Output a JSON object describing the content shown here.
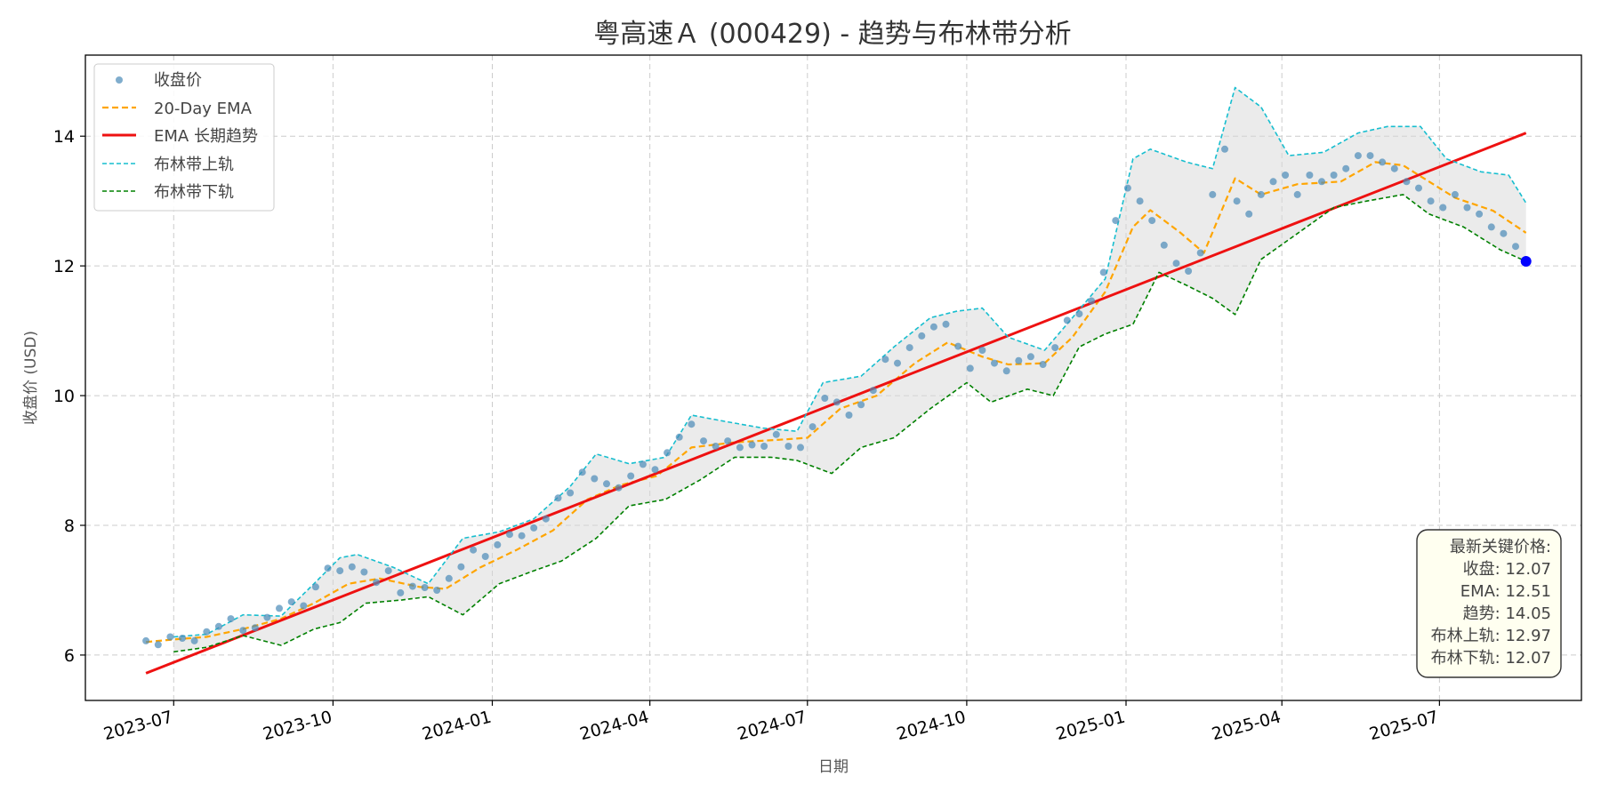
{
  "chart_data": {
    "type": "line",
    "title": "粤高速Ａ (000429) - 趋势与布林带分析",
    "xlabel": "日期",
    "ylabel": "收盘价 (USD)",
    "x_ticks": [
      "2023-07",
      "2023-10",
      "2024-01",
      "2024-04",
      "2024-07",
      "2024-10",
      "2025-01",
      "2025-04",
      "2025-07"
    ],
    "y_ticks": [
      6,
      8,
      10,
      12,
      14
    ],
    "xlim": [
      "2023-05-11",
      "2025-09-21"
    ],
    "ylim": [
      5.3,
      15.25
    ],
    "grid": true,
    "legend_position": "top-left",
    "legend": [
      "收盘价",
      "20-Day EMA",
      "EMA 长期趋势",
      "布林带上轨",
      "布林带下轨"
    ],
    "colors": {
      "close": "#4a8ab8",
      "ema": "#ffa500",
      "trend": "#ee1111",
      "upper": "#17becf",
      "lower": "#008000",
      "band_fill": "#d8d8d8",
      "latest_point": "#0000ff"
    },
    "series": [
      {
        "name": "收盘价",
        "style": "scatter",
        "points": [
          [
            "2023-06-15",
            6.22
          ],
          [
            "2023-06-22",
            6.16
          ],
          [
            "2023-06-29",
            6.28
          ],
          [
            "2023-07-06",
            6.26
          ],
          [
            "2023-07-13",
            6.22
          ],
          [
            "2023-07-20",
            6.36
          ],
          [
            "2023-07-27",
            6.44
          ],
          [
            "2023-08-03",
            6.56
          ],
          [
            "2023-08-10",
            6.38
          ],
          [
            "2023-08-17",
            6.42
          ],
          [
            "2023-08-24",
            6.58
          ],
          [
            "2023-08-31",
            6.72
          ],
          [
            "2023-09-07",
            6.82
          ],
          [
            "2023-09-14",
            6.76
          ],
          [
            "2023-09-21",
            7.05
          ],
          [
            "2023-09-28",
            7.34
          ],
          [
            "2023-10-05",
            7.3
          ],
          [
            "2023-10-12",
            7.36
          ],
          [
            "2023-10-19",
            7.28
          ],
          [
            "2023-10-26",
            7.12
          ],
          [
            "2023-11-02",
            7.3
          ],
          [
            "2023-11-09",
            6.96
          ],
          [
            "2023-11-16",
            7.06
          ],
          [
            "2023-11-23",
            7.04
          ],
          [
            "2023-11-30",
            7.0
          ],
          [
            "2023-12-07",
            7.18
          ],
          [
            "2023-12-14",
            7.36
          ],
          [
            "2023-12-21",
            7.62
          ],
          [
            "2023-12-28",
            7.52
          ],
          [
            "2024-01-04",
            7.7
          ],
          [
            "2024-01-11",
            7.86
          ],
          [
            "2024-01-18",
            7.84
          ],
          [
            "2024-01-25",
            7.96
          ],
          [
            "2024-02-01",
            8.1
          ],
          [
            "2024-02-08",
            8.42
          ],
          [
            "2024-02-15",
            8.5
          ],
          [
            "2024-02-22",
            8.82
          ],
          [
            "2024-02-29",
            8.72
          ],
          [
            "2024-03-07",
            8.64
          ],
          [
            "2024-03-14",
            8.58
          ],
          [
            "2024-03-21",
            8.76
          ],
          [
            "2024-03-28",
            8.94
          ],
          [
            "2024-04-04",
            8.86
          ],
          [
            "2024-04-11",
            9.12
          ],
          [
            "2024-04-18",
            9.36
          ],
          [
            "2024-04-25",
            9.56
          ],
          [
            "2024-05-02",
            9.3
          ],
          [
            "2024-05-09",
            9.22
          ],
          [
            "2024-05-16",
            9.3
          ],
          [
            "2024-05-23",
            9.2
          ],
          [
            "2024-05-30",
            9.24
          ],
          [
            "2024-06-06",
            9.22
          ],
          [
            "2024-06-13",
            9.4
          ],
          [
            "2024-06-20",
            9.22
          ],
          [
            "2024-06-27",
            9.2
          ],
          [
            "2024-07-04",
            9.52
          ],
          [
            "2024-07-11",
            9.96
          ],
          [
            "2024-07-18",
            9.9
          ],
          [
            "2024-07-25",
            9.7
          ],
          [
            "2024-08-01",
            9.86
          ],
          [
            "2024-08-08",
            10.08
          ],
          [
            "2024-08-15",
            10.56
          ],
          [
            "2024-08-22",
            10.5
          ],
          [
            "2024-08-29",
            10.74
          ],
          [
            "2024-09-05",
            10.92
          ],
          [
            "2024-09-12",
            11.06
          ],
          [
            "2024-09-19",
            11.1
          ],
          [
            "2024-09-26",
            10.76
          ],
          [
            "2024-10-03",
            10.42
          ],
          [
            "2024-10-10",
            10.7
          ],
          [
            "2024-10-17",
            10.5
          ],
          [
            "2024-10-24",
            10.38
          ],
          [
            "2024-10-31",
            10.54
          ],
          [
            "2024-11-07",
            10.6
          ],
          [
            "2024-11-14",
            10.48
          ],
          [
            "2024-11-21",
            10.74
          ],
          [
            "2024-11-28",
            11.16
          ],
          [
            "2024-12-05",
            11.26
          ],
          [
            "2024-12-12",
            11.46
          ],
          [
            "2024-12-19",
            11.9
          ],
          [
            "2024-12-26",
            12.7
          ],
          [
            "2025-01-02",
            13.2
          ],
          [
            "2025-01-09",
            13.0
          ],
          [
            "2025-01-16",
            12.7
          ],
          [
            "2025-01-23",
            12.32
          ],
          [
            "2025-01-30",
            12.04
          ],
          [
            "2025-02-06",
            11.92
          ],
          [
            "2025-02-13",
            12.2
          ],
          [
            "2025-02-20",
            13.1
          ],
          [
            "2025-02-27",
            13.8
          ],
          [
            "2025-03-06",
            13.0
          ],
          [
            "2025-03-13",
            12.8
          ],
          [
            "2025-03-20",
            13.1
          ],
          [
            "2025-03-27",
            13.3
          ],
          [
            "2025-04-03",
            13.4
          ],
          [
            "2025-04-10",
            13.1
          ],
          [
            "2025-04-17",
            13.4
          ],
          [
            "2025-04-24",
            13.3
          ],
          [
            "2025-05-01",
            13.4
          ],
          [
            "2025-05-08",
            13.5
          ],
          [
            "2025-05-15",
            13.7
          ],
          [
            "2025-05-22",
            13.7
          ],
          [
            "2025-05-29",
            13.6
          ],
          [
            "2025-06-05",
            13.5
          ],
          [
            "2025-06-12",
            13.3
          ],
          [
            "2025-06-19",
            13.2
          ],
          [
            "2025-06-26",
            13.0
          ],
          [
            "2025-07-03",
            12.9
          ],
          [
            "2025-07-10",
            13.1
          ],
          [
            "2025-07-17",
            12.9
          ],
          [
            "2025-07-24",
            12.8
          ],
          [
            "2025-07-31",
            12.6
          ],
          [
            "2025-08-07",
            12.5
          ],
          [
            "2025-08-14",
            12.3
          ],
          [
            "2025-08-20",
            12.07
          ]
        ]
      },
      {
        "name": "20-Day EMA",
        "style": "dashed",
        "points": [
          [
            "2023-06-15",
            6.2
          ],
          [
            "2023-07-01",
            6.24
          ],
          [
            "2023-07-20",
            6.28
          ],
          [
            "2023-08-10",
            6.4
          ],
          [
            "2023-09-01",
            6.56
          ],
          [
            "2023-09-20",
            6.8
          ],
          [
            "2023-10-10",
            7.1
          ],
          [
            "2023-10-28",
            7.18
          ],
          [
            "2023-11-20",
            7.05
          ],
          [
            "2023-12-05",
            7.02
          ],
          [
            "2023-12-25",
            7.35
          ],
          [
            "2024-01-15",
            7.62
          ],
          [
            "2024-02-05",
            7.92
          ],
          [
            "2024-02-25",
            8.4
          ],
          [
            "2024-03-15",
            8.62
          ],
          [
            "2024-04-05",
            8.76
          ],
          [
            "2024-04-25",
            9.2
          ],
          [
            "2024-05-20",
            9.28
          ],
          [
            "2024-06-15",
            9.32
          ],
          [
            "2024-07-01",
            9.35
          ],
          [
            "2024-07-20",
            9.8
          ],
          [
            "2024-08-10",
            10.0
          ],
          [
            "2024-09-01",
            10.5
          ],
          [
            "2024-09-20",
            10.82
          ],
          [
            "2024-10-10",
            10.6
          ],
          [
            "2024-10-25",
            10.48
          ],
          [
            "2024-11-15",
            10.5
          ],
          [
            "2024-12-01",
            10.9
          ],
          [
            "2024-12-20",
            11.6
          ],
          [
            "2025-01-05",
            12.6
          ],
          [
            "2025-01-15",
            12.86
          ],
          [
            "2025-02-01",
            12.52
          ],
          [
            "2025-02-15",
            12.2
          ],
          [
            "2025-03-05",
            13.35
          ],
          [
            "2025-03-20",
            13.1
          ],
          [
            "2025-04-10",
            13.26
          ],
          [
            "2025-05-05",
            13.3
          ],
          [
            "2025-05-25",
            13.6
          ],
          [
            "2025-06-10",
            13.55
          ],
          [
            "2025-06-25",
            13.3
          ],
          [
            "2025-07-10",
            13.05
          ],
          [
            "2025-08-01",
            12.85
          ],
          [
            "2025-08-20",
            12.51
          ]
        ]
      },
      {
        "name": "EMA 长期趋势",
        "style": "solid",
        "points": [
          [
            "2023-06-15",
            5.72
          ],
          [
            "2025-08-20",
            14.05
          ]
        ]
      },
      {
        "name": "布林带上轨",
        "style": "dashed",
        "points": [
          [
            "2023-07-01",
            6.28
          ],
          [
            "2023-07-20",
            6.32
          ],
          [
            "2023-08-10",
            6.62
          ],
          [
            "2023-09-01",
            6.6
          ],
          [
            "2023-09-20",
            7.1
          ],
          [
            "2023-10-05",
            7.5
          ],
          [
            "2023-10-15",
            7.55
          ],
          [
            "2023-11-05",
            7.35
          ],
          [
            "2023-11-25",
            7.1
          ],
          [
            "2023-12-15",
            7.8
          ],
          [
            "2024-01-05",
            7.9
          ],
          [
            "2024-01-25",
            8.1
          ],
          [
            "2024-02-15",
            8.6
          ],
          [
            "2024-03-01",
            9.1
          ],
          [
            "2024-03-20",
            8.95
          ],
          [
            "2024-04-10",
            9.05
          ],
          [
            "2024-04-25",
            9.7
          ],
          [
            "2024-05-15",
            9.6
          ],
          [
            "2024-06-05",
            9.5
          ],
          [
            "2024-06-25",
            9.45
          ],
          [
            "2024-07-10",
            10.2
          ],
          [
            "2024-08-01",
            10.3
          ],
          [
            "2024-08-20",
            10.75
          ],
          [
            "2024-09-10",
            11.2
          ],
          [
            "2024-09-25",
            11.3
          ],
          [
            "2024-10-10",
            11.35
          ],
          [
            "2024-10-25",
            10.9
          ],
          [
            "2024-11-15",
            10.7
          ],
          [
            "2024-12-01",
            11.2
          ],
          [
            "2024-12-20",
            11.8
          ],
          [
            "2025-01-05",
            13.65
          ],
          [
            "2025-01-15",
            13.8
          ],
          [
            "2025-02-05",
            13.6
          ],
          [
            "2025-02-20",
            13.5
          ],
          [
            "2025-03-05",
            14.75
          ],
          [
            "2025-03-20",
            14.45
          ],
          [
            "2025-04-05",
            13.7
          ],
          [
            "2025-04-25",
            13.75
          ],
          [
            "2025-05-15",
            14.05
          ],
          [
            "2025-06-01",
            14.15
          ],
          [
            "2025-06-20",
            14.15
          ],
          [
            "2025-07-05",
            13.65
          ],
          [
            "2025-07-25",
            13.45
          ],
          [
            "2025-08-10",
            13.4
          ],
          [
            "2025-08-20",
            12.97
          ]
        ]
      },
      {
        "name": "布林带下轨",
        "style": "dashed",
        "points": [
          [
            "2023-07-01",
            6.05
          ],
          [
            "2023-07-20",
            6.12
          ],
          [
            "2023-08-10",
            6.3
          ],
          [
            "2023-09-01",
            6.15
          ],
          [
            "2023-09-20",
            6.4
          ],
          [
            "2023-10-05",
            6.5
          ],
          [
            "2023-10-20",
            6.8
          ],
          [
            "2023-11-10",
            6.85
          ],
          [
            "2023-11-25",
            6.9
          ],
          [
            "2023-12-15",
            6.62
          ],
          [
            "2024-01-05",
            7.1
          ],
          [
            "2024-01-25",
            7.3
          ],
          [
            "2024-02-10",
            7.45
          ],
          [
            "2024-03-01",
            7.8
          ],
          [
            "2024-03-20",
            8.3
          ],
          [
            "2024-04-10",
            8.4
          ],
          [
            "2024-04-30",
            8.7
          ],
          [
            "2024-05-20",
            9.05
          ],
          [
            "2024-06-10",
            9.05
          ],
          [
            "2024-06-25",
            9.0
          ],
          [
            "2024-07-15",
            8.8
          ],
          [
            "2024-08-01",
            9.2
          ],
          [
            "2024-08-20",
            9.35
          ],
          [
            "2024-09-10",
            9.8
          ],
          [
            "2024-10-01",
            10.2
          ],
          [
            "2024-10-15",
            9.9
          ],
          [
            "2024-11-05",
            10.1
          ],
          [
            "2024-11-20",
            10.0
          ],
          [
            "2024-12-05",
            10.75
          ],
          [
            "2024-12-20",
            10.95
          ],
          [
            "2025-01-05",
            11.1
          ],
          [
            "2025-01-20",
            11.9
          ],
          [
            "2025-02-05",
            11.7
          ],
          [
            "2025-02-20",
            11.5
          ],
          [
            "2025-03-05",
            11.25
          ],
          [
            "2025-03-20",
            12.1
          ],
          [
            "2025-04-10",
            12.5
          ],
          [
            "2025-05-01",
            12.9
          ],
          [
            "2025-05-20",
            13.0
          ],
          [
            "2025-06-10",
            13.1
          ],
          [
            "2025-06-25",
            12.8
          ],
          [
            "2025-07-15",
            12.6
          ],
          [
            "2025-08-05",
            12.25
          ],
          [
            "2025-08-20",
            12.07
          ]
        ]
      }
    ],
    "latest_point": [
      "2025-08-20",
      12.07
    ],
    "info_box": {
      "title": "最新关键价格:",
      "lines": [
        "收盘: 12.07",
        "EMA: 12.51",
        "趋势: 14.05",
        "布林上轨: 12.97",
        "布林下轨: 12.07"
      ]
    }
  }
}
